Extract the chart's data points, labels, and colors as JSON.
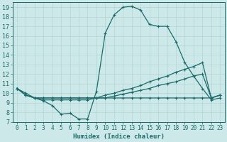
{
  "xlabel": "Humidex (Indice chaleur)",
  "xlim": [
    -0.5,
    23.5
  ],
  "ylim": [
    7,
    19.5
  ],
  "xticks": [
    0,
    1,
    2,
    3,
    4,
    5,
    6,
    7,
    8,
    9,
    10,
    11,
    12,
    13,
    14,
    15,
    16,
    17,
    18,
    19,
    20,
    21,
    22,
    23
  ],
  "yticks": [
    7,
    8,
    9,
    10,
    11,
    12,
    13,
    14,
    15,
    16,
    17,
    18,
    19
  ],
  "bg_color": "#cce8e8",
  "line_color": "#1a6b6b",
  "grid_color": "#b8d8d8",
  "line1_x": [
    0,
    1,
    2,
    3,
    4,
    5,
    6,
    7,
    8,
    9,
    10,
    11,
    12,
    13,
    14,
    15,
    16,
    17,
    18,
    19,
    20,
    21,
    22,
    23
  ],
  "line1_y": [
    10.5,
    10.0,
    9.5,
    9.2,
    8.7,
    7.8,
    7.9,
    7.3,
    7.3,
    10.2,
    16.3,
    18.2,
    19.0,
    19.1,
    18.7,
    17.2,
    17.0,
    17.0,
    15.4,
    13.2,
    11.8,
    10.5,
    9.3,
    9.5
  ],
  "line2_x": [
    0,
    1,
    2,
    3,
    4,
    5,
    6,
    7,
    8,
    9,
    10,
    11,
    12,
    13,
    14,
    15,
    16,
    17,
    18,
    19,
    20,
    21,
    22,
    23
  ],
  "line2_y": [
    10.5,
    9.8,
    9.5,
    9.5,
    9.5,
    9.5,
    9.5,
    9.5,
    9.5,
    9.5,
    9.8,
    10.0,
    10.3,
    10.5,
    10.8,
    11.2,
    11.5,
    11.8,
    12.2,
    12.5,
    12.8,
    13.2,
    9.5,
    9.8
  ],
  "line3_x": [
    0,
    1,
    2,
    3,
    4,
    5,
    6,
    7,
    8,
    9,
    10,
    11,
    12,
    13,
    14,
    15,
    16,
    17,
    18,
    19,
    20,
    21,
    22,
    23
  ],
  "line3_y": [
    10.5,
    9.8,
    9.5,
    9.5,
    9.5,
    9.5,
    9.5,
    9.5,
    9.5,
    9.5,
    9.5,
    9.7,
    9.9,
    10.1,
    10.3,
    10.5,
    10.8,
    11.0,
    11.2,
    11.5,
    11.8,
    12.0,
    9.5,
    9.8
  ],
  "line4_x": [
    0,
    1,
    2,
    3,
    4,
    5,
    6,
    7,
    8,
    9,
    10,
    11,
    12,
    13,
    14,
    15,
    16,
    17,
    18,
    19,
    20,
    21,
    22,
    23
  ],
  "line4_y": [
    10.5,
    9.8,
    9.5,
    9.3,
    9.3,
    9.3,
    9.3,
    9.3,
    9.3,
    9.5,
    9.5,
    9.5,
    9.5,
    9.5,
    9.5,
    9.5,
    9.5,
    9.5,
    9.5,
    9.5,
    9.5,
    9.5,
    9.5,
    9.8
  ]
}
